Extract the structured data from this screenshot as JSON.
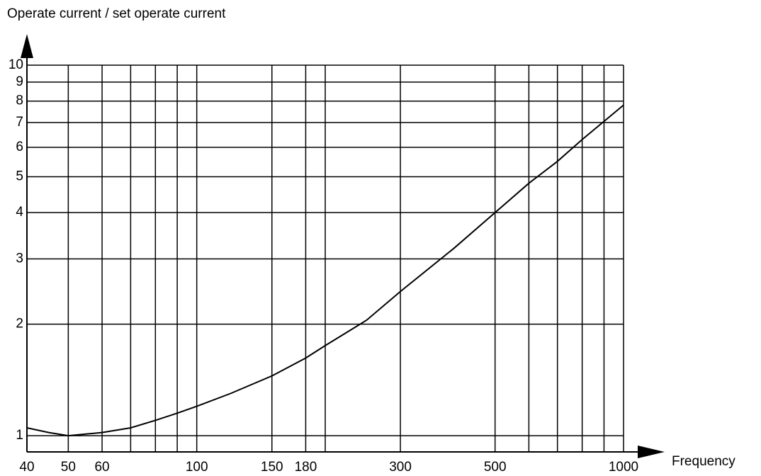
{
  "chart_data": {
    "type": "line",
    "ylabel": "Operate current / set operate current",
    "xlabel": "Frequency",
    "log_x": true,
    "log_y": true,
    "grid": true,
    "xlim": [
      40,
      1000
    ],
    "ylim": [
      0.9,
      10
    ],
    "xticks": [
      40,
      50,
      60,
      100,
      150,
      180,
      300,
      500,
      1000
    ],
    "xgrid": [
      50,
      60,
      70,
      80,
      90,
      100,
      150,
      180,
      200,
      300,
      500,
      600,
      700,
      800,
      900,
      1000
    ],
    "yticks": [
      1,
      2,
      3,
      4,
      5,
      6,
      7,
      8,
      9,
      10
    ],
    "series": [
      {
        "color": "#000000",
        "x": [
          40,
          45,
          50,
          55,
          60,
          70,
          80,
          90,
          100,
          120,
          150,
          180,
          200,
          250,
          300,
          400,
          500,
          600,
          700,
          800,
          1000
        ],
        "values": [
          1.05,
          1.02,
          1.0,
          1.01,
          1.02,
          1.05,
          1.1,
          1.15,
          1.2,
          1.3,
          1.45,
          1.62,
          1.75,
          2.05,
          2.45,
          3.2,
          4.0,
          4.8,
          5.5,
          6.3,
          7.8
        ]
      }
    ]
  }
}
